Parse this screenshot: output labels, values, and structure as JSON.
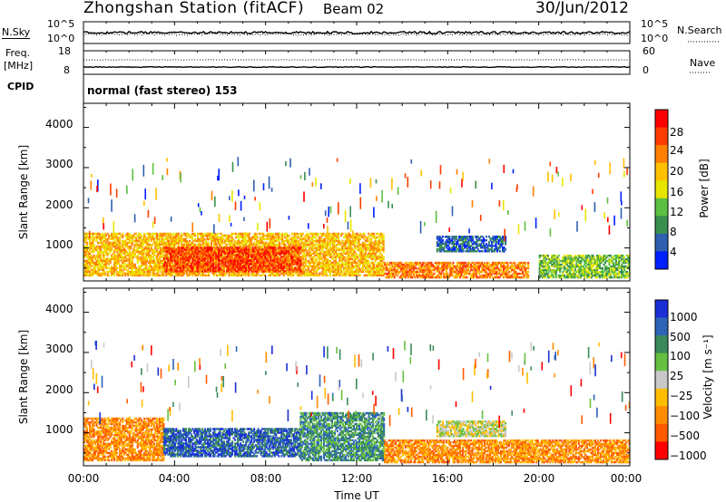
{
  "header": {
    "station": "Zhongshan Station (fitACF)",
    "beam": "Beam 02",
    "date": "30/Jun/2012"
  },
  "strips": {
    "nsky": {
      "label": "N.Sky",
      "top": "10^5",
      "bottom": "10^0"
    },
    "nsearch": {
      "label": "N.Search",
      "top": "10^5",
      "bottom": "10^0"
    },
    "freq": {
      "label": "Freq.",
      "unit": "[MHz]",
      "top": "18",
      "bottom": "8"
    },
    "nave": {
      "label": "Nave",
      "top": "60",
      "bottom": "0"
    },
    "cpid": {
      "label": "CPID",
      "text": "normal (fast stereo) 153"
    }
  },
  "axes": {
    "ylabel": "Slant Range [km]",
    "xlabel": "Time UT",
    "y_ticks": [
      "1000",
      "2000",
      "3000",
      "4000"
    ],
    "x_ticks": [
      "00:00",
      "04:00",
      "08:00",
      "12:00",
      "16:00",
      "20:00",
      "00:00"
    ]
  },
  "power_scale": {
    "title": "Power [dB]",
    "labels": [
      "28",
      "24",
      "20",
      "16",
      "12",
      "8",
      "4"
    ],
    "colors": [
      "#ff0000",
      "#ff3c00",
      "#ff7f00",
      "#ffc000",
      "#e8e600",
      "#5cc040",
      "#3a8f50",
      "#2f5fb0",
      "#0020ff"
    ]
  },
  "velocity_scale": {
    "title": "Velocity [m s⁻¹]",
    "labels": [
      "1000",
      "500",
      "100",
      "25",
      "−25",
      "−100",
      "−500",
      "−1000"
    ],
    "colors": [
      "#1a2fd6",
      "#2e64b8",
      "#3a8a5a",
      "#66c040",
      "#c8c8c8",
      "#ffbd00",
      "#ff8c00",
      "#ff5a00",
      "#ff0000"
    ]
  },
  "chart_data": [
    {
      "type": "heatmap",
      "title": "Power",
      "xlabel": "Time UT",
      "ylabel": "Slant Range [km]",
      "xlim": [
        0,
        24
      ],
      "ylim": [
        180,
        4600
      ],
      "colorbar": "Power [dB]",
      "regions": [
        {
          "t0": 0.0,
          "t1": 13.2,
          "r0": 300,
          "r1": 1350,
          "dominant_db": 20
        },
        {
          "t0": 3.5,
          "t1": 9.5,
          "r0": 400,
          "r1": 1000,
          "dominant_db": 28
        },
        {
          "t0": 13.2,
          "t1": 19.5,
          "r0": 250,
          "r1": 650,
          "dominant_db": 24
        },
        {
          "t0": 15.5,
          "t1": 18.5,
          "r0": 900,
          "r1": 1300,
          "dominant_db": 4
        },
        {
          "t0": 20.0,
          "t1": 24.0,
          "r0": 250,
          "r1": 800,
          "dominant_db": 12
        }
      ]
    },
    {
      "type": "heatmap",
      "title": "Velocity",
      "xlabel": "Time UT",
      "ylabel": "Slant Range [km]",
      "xlim": [
        0,
        24
      ],
      "ylim": [
        180,
        4600
      ],
      "colorbar": "Velocity [m s⁻¹]",
      "regions": [
        {
          "t0": 0.0,
          "t1": 3.5,
          "r0": 300,
          "r1": 1350,
          "dominant_ms": -100
        },
        {
          "t0": 3.5,
          "t1": 9.5,
          "r0": 400,
          "r1": 1100,
          "dominant_ms": 500
        },
        {
          "t0": 9.5,
          "t1": 13.2,
          "r0": 300,
          "r1": 1500,
          "dominant_ms": 100
        },
        {
          "t0": 13.2,
          "t1": 24.0,
          "r0": 250,
          "r1": 800,
          "dominant_ms": -100
        },
        {
          "t0": 15.5,
          "t1": 18.5,
          "r0": 900,
          "r1": 1300,
          "dominant_ms": 0
        }
      ]
    }
  ]
}
